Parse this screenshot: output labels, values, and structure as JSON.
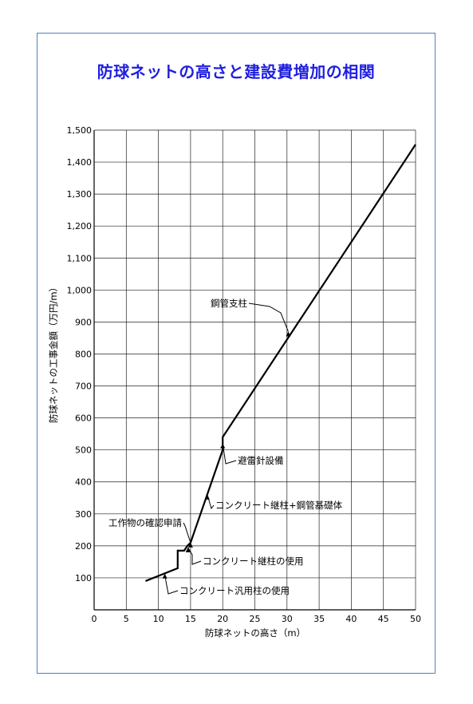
{
  "chart_data": {
    "type": "line",
    "title": "防球ネットの高さと建設費増加の相関",
    "title_color": "#1f1fe0",
    "xlabel": "防球ネットの高さ（m）",
    "ylabel": "防球ネットの工事金額（万円/m）",
    "xlim": [
      0,
      50
    ],
    "ylim": [
      0,
      1500
    ],
    "xticks": [
      0,
      5,
      10,
      15,
      20,
      25,
      30,
      35,
      40,
      45,
      50
    ],
    "xtick_labels": [
      "0",
      "5",
      "10",
      "15",
      "20",
      "25",
      "30",
      "35",
      "40",
      "45",
      "50"
    ],
    "yticks": [
      100,
      200,
      300,
      400,
      500,
      600,
      700,
      800,
      900,
      1000,
      1100,
      1200,
      1300,
      1400,
      1500
    ],
    "ytick_labels": [
      "100",
      "200",
      "300",
      "400",
      "500",
      "600",
      "700",
      "800",
      "900",
      "1,000",
      "1,100",
      "1,200",
      "1,300",
      "1,400",
      "1,500"
    ],
    "grid": true,
    "series": [
      {
        "x": [
          8,
          13,
          13,
          14,
          14.5,
          15,
          20,
          20,
          50
        ],
        "y": [
          90,
          130,
          185,
          185,
          200,
          210,
          500,
          540,
          1455
        ]
      }
    ],
    "annotations": [
      {
        "text": "鋼管支柱",
        "point": [
          30.2,
          870
        ]
      },
      {
        "text": "避雷針設備",
        "point": [
          20,
          520
        ]
      },
      {
        "text": "コンクリート継柱+鋼管基礎体",
        "point": [
          17.6,
          360
        ]
      },
      {
        "text": "工作物の確認申請",
        "point": [
          15,
          210
        ]
      },
      {
        "text": "コンクリート継柱の使用",
        "point": [
          14.6,
          195
        ]
      },
      {
        "text": "コンクリート汎用柱の使用",
        "point": [
          11,
          113
        ]
      }
    ]
  }
}
